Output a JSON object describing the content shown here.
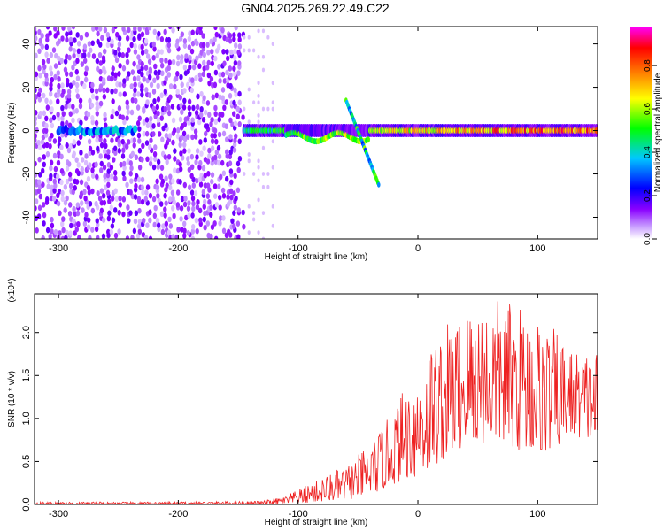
{
  "chart_data": [
    {
      "type": "heatmap",
      "title": "GN04.2025.269.22.49.C22",
      "xlabel": "Height of straight line (km)",
      "ylabel": "Frequency (Hz)",
      "xlim": [
        -320,
        150
      ],
      "ylim": [
        -50,
        48
      ],
      "x_ticks": [
        -300,
        -200,
        -100,
        0,
        100
      ],
      "y_ticks": [
        -40,
        -20,
        0,
        20,
        40
      ],
      "colorbar": {
        "label": "Normalized spectral amplitude",
        "range": [
          0.0,
          0.98
        ],
        "ticks": [
          0.0,
          0.2,
          0.4,
          0.6,
          0.8
        ],
        "colors": [
          "#ffffff",
          "#c79bff",
          "#8a00ff",
          "#0000ff",
          "#00c8ff",
          "#00ff00",
          "#ffff00",
          "#ff8000",
          "#ff0000",
          "#ff00ff"
        ]
      },
      "features": [
        {
          "desc": "noise",
          "x_range": [
            -320,
            -145
          ],
          "f_range": [
            -50,
            48
          ],
          "level": 0.15
        },
        {
          "desc": "early tone",
          "x_range": [
            -300,
            -235
          ],
          "f_center": 0,
          "level": 0.35
        },
        {
          "desc": "main tone",
          "x_range": [
            -145,
            150
          ],
          "f_center": 0,
          "level_start": 0.45,
          "level_end": 0.9
        }
      ]
    },
    {
      "type": "line",
      "xlabel": "Height of straight line (km)",
      "ylabel": "SNR (10 * v/v)",
      "y_multiplier_label": "(x10⁴)",
      "xlim": [
        -320,
        150
      ],
      "ylim": [
        0,
        2.45
      ],
      "x_ticks": [
        -300,
        -200,
        -100,
        0,
        100
      ],
      "y_ticks": [
        0.0,
        0.5,
        1.0,
        1.5,
        2.0
      ],
      "y_tick_labels": [
        "0.0",
        "0.5",
        "1.0",
        "1.5",
        "2.0"
      ],
      "series": [
        {
          "color": "#ee2222",
          "envelope_x": [
            -320,
            -200,
            -130,
            -110,
            -90,
            -60,
            -40,
            -25,
            -10,
            0,
            10,
            30,
            50,
            70,
            90,
            110,
            130,
            150
          ],
          "envelope_max": [
            0.03,
            0.03,
            0.04,
            0.1,
            0.25,
            0.45,
            0.7,
            1.0,
            1.4,
            1.6,
            1.9,
            2.2,
            2.4,
            2.4,
            2.3,
            2.1,
            1.8,
            1.8
          ],
          "envelope_min": [
            0.0,
            0.0,
            0.0,
            0.0,
            0.02,
            0.05,
            0.1,
            0.2,
            0.3,
            0.3,
            0.4,
            0.6,
            0.7,
            0.7,
            0.6,
            0.6,
            0.8,
            0.7
          ]
        }
      ]
    }
  ]
}
